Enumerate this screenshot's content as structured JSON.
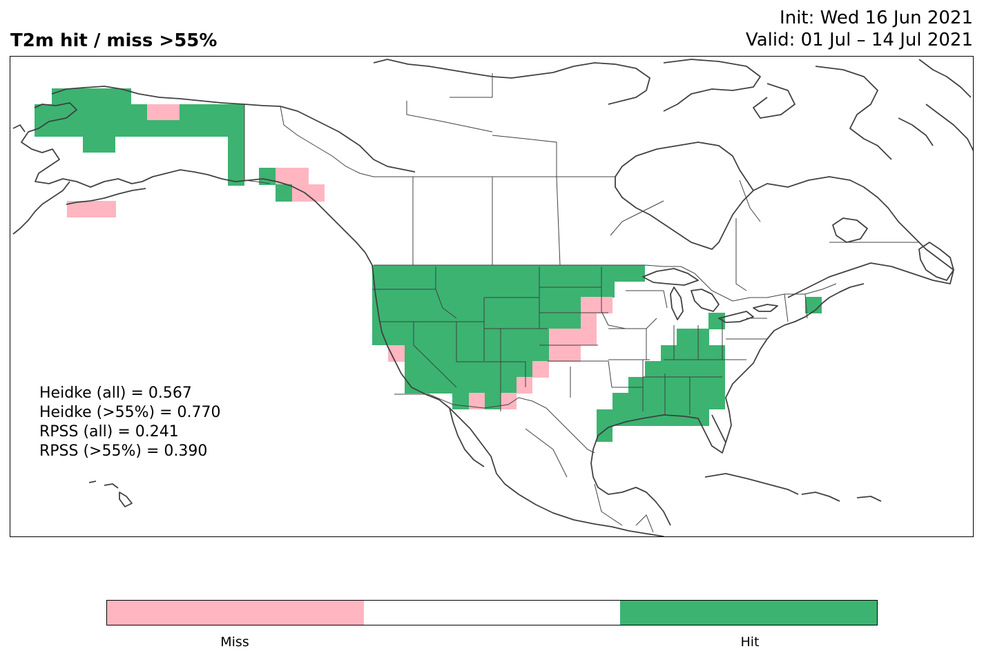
{
  "title": {
    "left": "T2m hit / miss  >55%",
    "init": "Init: Wed 16 Jun 2021",
    "valid": "Valid: 01 Jul – 14 Jul 2021"
  },
  "scores": [
    "Heidke (all) = 0.567",
    "Heidke (>55%) = 0.770",
    "RPSS (all) = 0.241",
    "RPSS (>55%) = 0.390"
  ],
  "legend": {
    "categories": [
      {
        "label": "Miss",
        "color": "#ffb6c1"
      },
      {
        "label": "",
        "color": "#ffffff"
      },
      {
        "label": "Hit",
        "color": "#3cb371"
      }
    ]
  },
  "colors": {
    "hit": "#3cb371",
    "miss": "#ffb6c1",
    "coast": "#404040"
  }
}
